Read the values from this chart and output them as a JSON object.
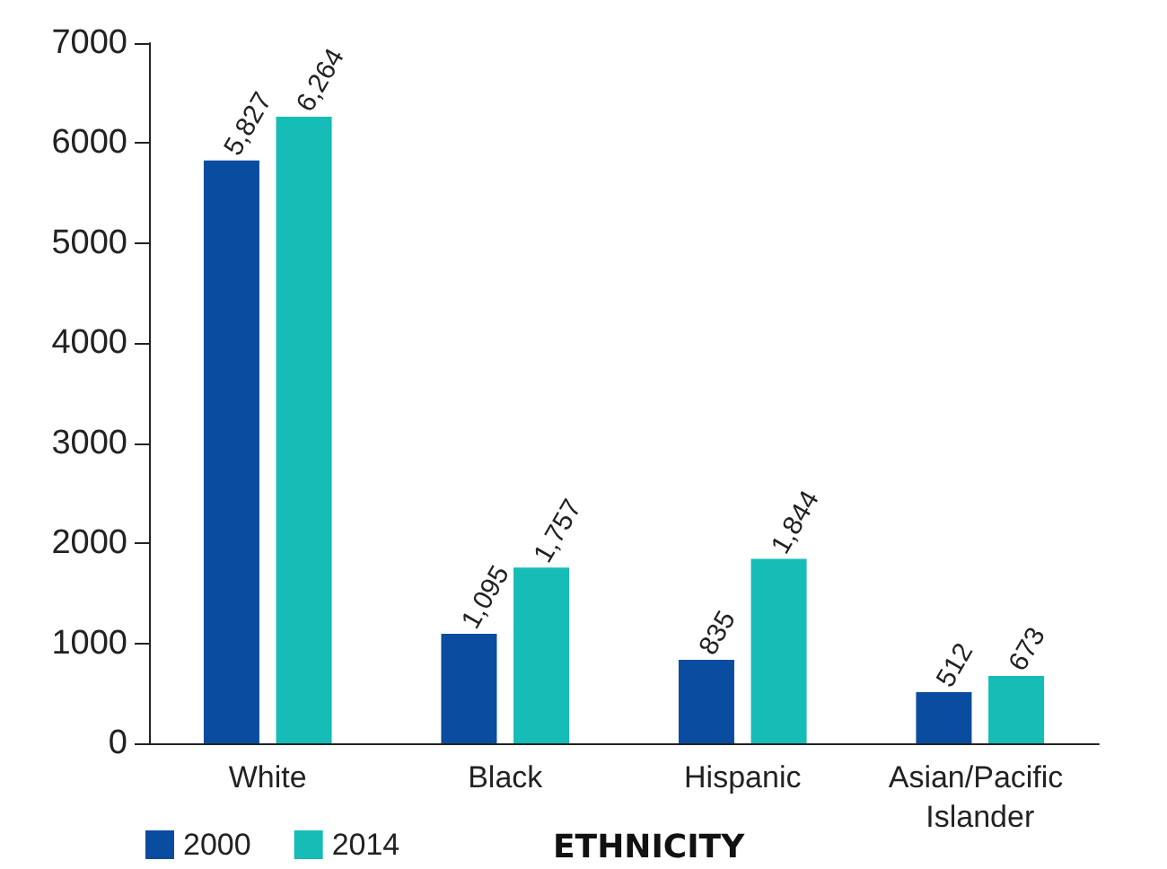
{
  "chart_data": {
    "type": "bar",
    "xlabel": "ETHNICITY",
    "categories": [
      "White",
      "Black",
      "Hispanic",
      "Asian/Pacific Islander"
    ],
    "series": [
      {
        "name": "2000",
        "color": "#0a4c9f",
        "values": [
          5827,
          1095,
          835,
          512
        ],
        "value_labels": [
          "5,827",
          "1,095",
          "835",
          "512"
        ]
      },
      {
        "name": "2014",
        "color": "#16bcb6",
        "values": [
          6264,
          1757,
          1844,
          673
        ],
        "value_labels": [
          "6,264",
          "1,757",
          "1,844",
          "673"
        ]
      }
    ],
    "ylim": [
      0,
      7000
    ],
    "yticks": [
      0,
      1000,
      2000,
      3000,
      4000,
      5000,
      6000,
      7000
    ],
    "grid": false,
    "legend": "bottom left"
  }
}
